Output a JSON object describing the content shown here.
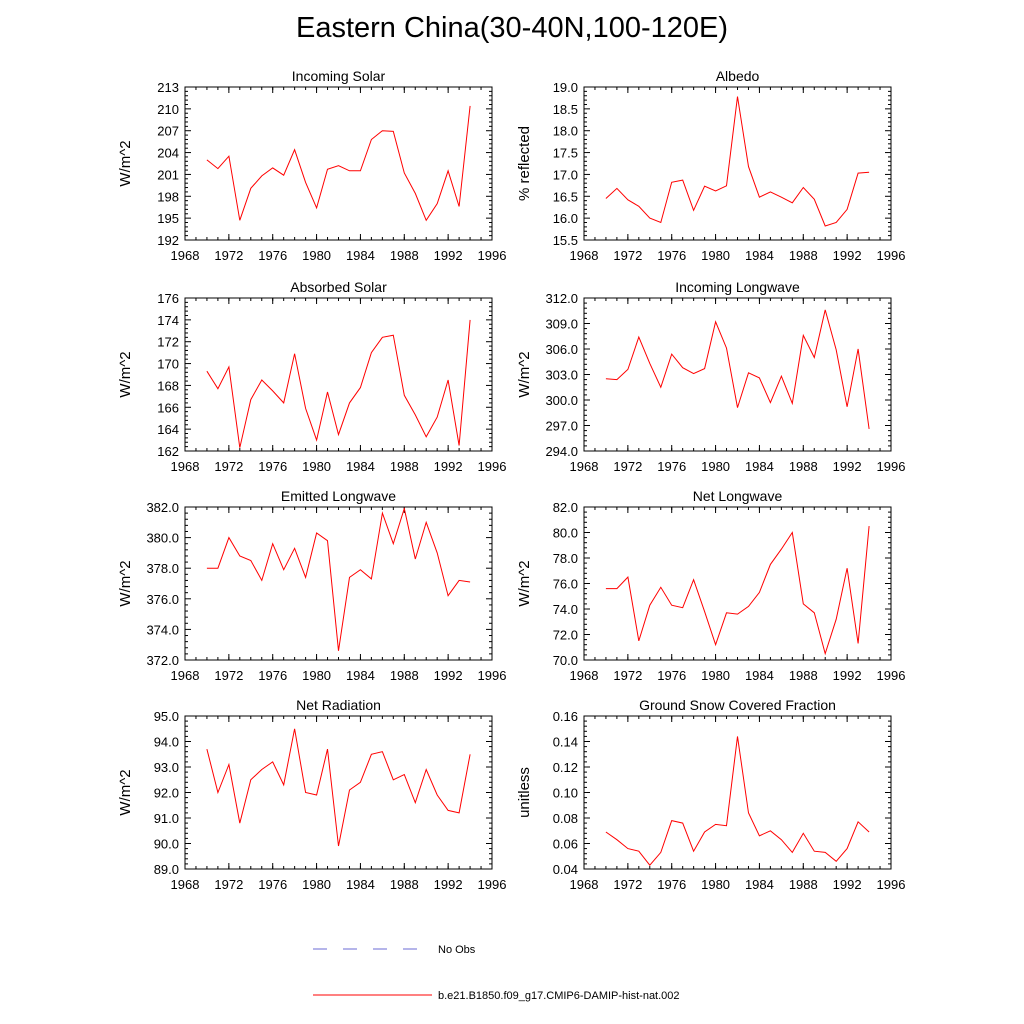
{
  "title": "Eastern China(30-40N,100-120E)",
  "colors": {
    "model": "#ff0000",
    "obs": "#6b6bd6",
    "axis": "#000000"
  },
  "legend": [
    {
      "label": "No Obs",
      "style": "dashed",
      "color": "#6b6bd6"
    },
    {
      "label": "b.e21.B1850.f09_g17.CMIP6-DAMIP-hist-nat.002",
      "style": "solid",
      "color": "#ff0000"
    }
  ],
  "chart_data": [
    {
      "type": "line",
      "title": "Incoming Solar",
      "ylabel": "W/m^2",
      "xlim": [
        1968,
        1996
      ],
      "ylim": [
        192,
        213
      ],
      "x_ticks": [
        1968,
        1972,
        1976,
        1980,
        1984,
        1988,
        1992,
        1996
      ],
      "y_ticks": [
        "192",
        "195",
        "198",
        "201",
        "204",
        "207",
        "210",
        "213"
      ],
      "series": [
        {
          "x": [
            1970,
            1971,
            1972,
            1973,
            1974,
            1975,
            1976,
            1977,
            1978,
            1979,
            1980,
            1981,
            1982,
            1983,
            1984,
            1985,
            1986,
            1987,
            1988,
            1989,
            1990,
            1991,
            1992,
            1993,
            1994
          ],
          "values": [
            203.0,
            201.8,
            203.5,
            194.7,
            199.1,
            200.8,
            201.9,
            200.9,
            204.4,
            199.9,
            196.4,
            201.7,
            202.2,
            201.5,
            201.5,
            205.8,
            207.0,
            206.9,
            201.2,
            198.4,
            194.7,
            197.0,
            201.5,
            196.6,
            210.4
          ]
        }
      ]
    },
    {
      "type": "line",
      "title": "Albedo",
      "ylabel": "% reflected",
      "xlim": [
        1968,
        1996
      ],
      "ylim": [
        15.5,
        19.0
      ],
      "x_ticks": [
        1968,
        1972,
        1976,
        1980,
        1984,
        1988,
        1992,
        1996
      ],
      "y_ticks": [
        "15.5",
        "16.0",
        "16.5",
        "17.0",
        "17.5",
        "18.0",
        "18.5",
        "19.0"
      ],
      "series": [
        {
          "x": [
            1970,
            1971,
            1972,
            1973,
            1974,
            1975,
            1976,
            1977,
            1978,
            1979,
            1980,
            1981,
            1982,
            1983,
            1984,
            1985,
            1986,
            1987,
            1988,
            1989,
            1990,
            1991,
            1992,
            1993,
            1994
          ],
          "values": [
            16.45,
            16.68,
            16.42,
            16.27,
            16.0,
            15.9,
            16.82,
            16.87,
            16.18,
            16.73,
            16.62,
            16.74,
            18.78,
            17.18,
            16.48,
            16.6,
            16.48,
            16.35,
            16.7,
            16.43,
            15.82,
            15.9,
            16.2,
            17.03,
            17.05
          ]
        }
      ]
    },
    {
      "type": "line",
      "title": "Absorbed Solar",
      "ylabel": "W/m^2",
      "xlim": [
        1968,
        1996
      ],
      "ylim": [
        162,
        176
      ],
      "x_ticks": [
        1968,
        1972,
        1976,
        1980,
        1984,
        1988,
        1992,
        1996
      ],
      "y_ticks": [
        "162",
        "164",
        "166",
        "168",
        "170",
        "172",
        "174",
        "176"
      ],
      "series": [
        {
          "x": [
            1970,
            1971,
            1972,
            1973,
            1974,
            1975,
            1976,
            1977,
            1978,
            1979,
            1980,
            1981,
            1982,
            1983,
            1984,
            1985,
            1986,
            1987,
            1988,
            1989,
            1990,
            1991,
            1992,
            1993,
            1994
          ],
          "values": [
            169.3,
            167.7,
            169.7,
            162.3,
            166.7,
            168.5,
            167.5,
            166.4,
            170.9,
            165.9,
            163.0,
            167.4,
            163.5,
            166.4,
            167.8,
            171.0,
            172.4,
            172.6,
            167.1,
            165.3,
            163.3,
            165.1,
            168.5,
            162.5,
            174.0
          ]
        }
      ]
    },
    {
      "type": "line",
      "title": "Incoming Longwave",
      "ylabel": "W/m^2",
      "xlim": [
        1968,
        1996
      ],
      "ylim": [
        294.0,
        312.0
      ],
      "x_ticks": [
        1968,
        1972,
        1976,
        1980,
        1984,
        1988,
        1992,
        1996
      ],
      "y_ticks": [
        "294.0",
        "297.0",
        "300.0",
        "303.0",
        "306.0",
        "309.0",
        "312.0"
      ],
      "series": [
        {
          "x": [
            1970,
            1971,
            1972,
            1973,
            1974,
            1975,
            1976,
            1977,
            1978,
            1979,
            1980,
            1981,
            1982,
            1983,
            1984,
            1985,
            1986,
            1987,
            1988,
            1989,
            1990,
            1991,
            1992,
            1993,
            1994
          ],
          "values": [
            302.5,
            302.4,
            303.6,
            307.4,
            304.3,
            301.5,
            305.4,
            303.8,
            303.1,
            303.7,
            309.2,
            306.1,
            299.1,
            303.2,
            302.6,
            299.7,
            302.8,
            299.6,
            307.6,
            305.0,
            310.6,
            305.9,
            299.2,
            306.0,
            296.6
          ]
        }
      ]
    },
    {
      "type": "line",
      "title": "Emitted Longwave",
      "ylabel": "W/m^2",
      "xlim": [
        1968,
        1996
      ],
      "ylim": [
        372.0,
        382.0
      ],
      "x_ticks": [
        1968,
        1972,
        1976,
        1980,
        1984,
        1988,
        1992,
        1996
      ],
      "y_ticks": [
        "372.0",
        "374.0",
        "376.0",
        "378.0",
        "380.0",
        "382.0"
      ],
      "series": [
        {
          "x": [
            1970,
            1971,
            1972,
            1973,
            1974,
            1975,
            1976,
            1977,
            1978,
            1979,
            1980,
            1981,
            1982,
            1983,
            1984,
            1985,
            1986,
            1987,
            1988,
            1989,
            1990,
            1991,
            1992,
            1993,
            1994
          ],
          "values": [
            378.0,
            378.0,
            380.0,
            378.8,
            378.5,
            377.2,
            379.6,
            377.9,
            379.3,
            377.4,
            380.3,
            379.8,
            372.6,
            377.4,
            377.9,
            377.3,
            381.6,
            379.6,
            381.9,
            378.6,
            381.0,
            379.0,
            376.2,
            377.2,
            377.1
          ]
        }
      ]
    },
    {
      "type": "line",
      "title": "Net Longwave",
      "ylabel": "W/m^2",
      "xlim": [
        1968,
        1996
      ],
      "ylim": [
        70.0,
        82.0
      ],
      "x_ticks": [
        1968,
        1972,
        1976,
        1980,
        1984,
        1988,
        1992,
        1996
      ],
      "y_ticks": [
        "70.0",
        "72.0",
        "74.0",
        "76.0",
        "78.0",
        "80.0",
        "82.0"
      ],
      "series": [
        {
          "x": [
            1970,
            1971,
            1972,
            1973,
            1974,
            1975,
            1976,
            1977,
            1978,
            1979,
            1980,
            1981,
            1982,
            1983,
            1984,
            1985,
            1986,
            1987,
            1988,
            1989,
            1990,
            1991,
            1992,
            1993,
            1994
          ],
          "values": [
            75.6,
            75.6,
            76.5,
            71.5,
            74.3,
            75.7,
            74.3,
            74.1,
            76.3,
            73.8,
            71.2,
            73.7,
            73.6,
            74.2,
            75.3,
            77.5,
            78.7,
            80.0,
            74.4,
            73.7,
            70.5,
            73.2,
            77.2,
            71.3,
            80.5
          ]
        }
      ]
    },
    {
      "type": "line",
      "title": "Net Radiation",
      "ylabel": "W/m^2",
      "xlim": [
        1968,
        1996
      ],
      "ylim": [
        89.0,
        95.0
      ],
      "x_ticks": [
        1968,
        1972,
        1976,
        1980,
        1984,
        1988,
        1992,
        1996
      ],
      "y_ticks": [
        "89.0",
        "90.0",
        "91.0",
        "92.0",
        "93.0",
        "94.0",
        "95.0"
      ],
      "series": [
        {
          "x": [
            1970,
            1971,
            1972,
            1973,
            1974,
            1975,
            1976,
            1977,
            1978,
            1979,
            1980,
            1981,
            1982,
            1983,
            1984,
            1985,
            1986,
            1987,
            1988,
            1989,
            1990,
            1991,
            1992,
            1993,
            1994
          ],
          "values": [
            93.7,
            92.0,
            93.1,
            90.8,
            92.5,
            92.9,
            93.2,
            92.3,
            94.5,
            92.0,
            91.9,
            93.7,
            89.9,
            92.1,
            92.4,
            93.5,
            93.6,
            92.5,
            92.7,
            91.6,
            92.9,
            91.9,
            91.3,
            91.2,
            93.5
          ]
        }
      ]
    },
    {
      "type": "line",
      "title": "Ground Snow Covered Fraction",
      "ylabel": "unitless",
      "xlim": [
        1968,
        1996
      ],
      "ylim": [
        0.04,
        0.16
      ],
      "x_ticks": [
        1968,
        1972,
        1976,
        1980,
        1984,
        1988,
        1992,
        1996
      ],
      "y_ticks": [
        "0.04",
        "0.06",
        "0.08",
        "0.10",
        "0.12",
        "0.14",
        "0.16"
      ],
      "series": [
        {
          "x": [
            1970,
            1971,
            1972,
            1973,
            1974,
            1975,
            1976,
            1977,
            1978,
            1979,
            1980,
            1981,
            1982,
            1983,
            1984,
            1985,
            1986,
            1987,
            1988,
            1989,
            1990,
            1991,
            1992,
            1993,
            1994
          ],
          "values": [
            0.069,
            0.063,
            0.056,
            0.054,
            0.043,
            0.053,
            0.078,
            0.076,
            0.054,
            0.069,
            0.075,
            0.074,
            0.144,
            0.084,
            0.066,
            0.07,
            0.063,
            0.053,
            0.068,
            0.054,
            0.053,
            0.046,
            0.056,
            0.077,
            0.069
          ]
        }
      ]
    }
  ]
}
